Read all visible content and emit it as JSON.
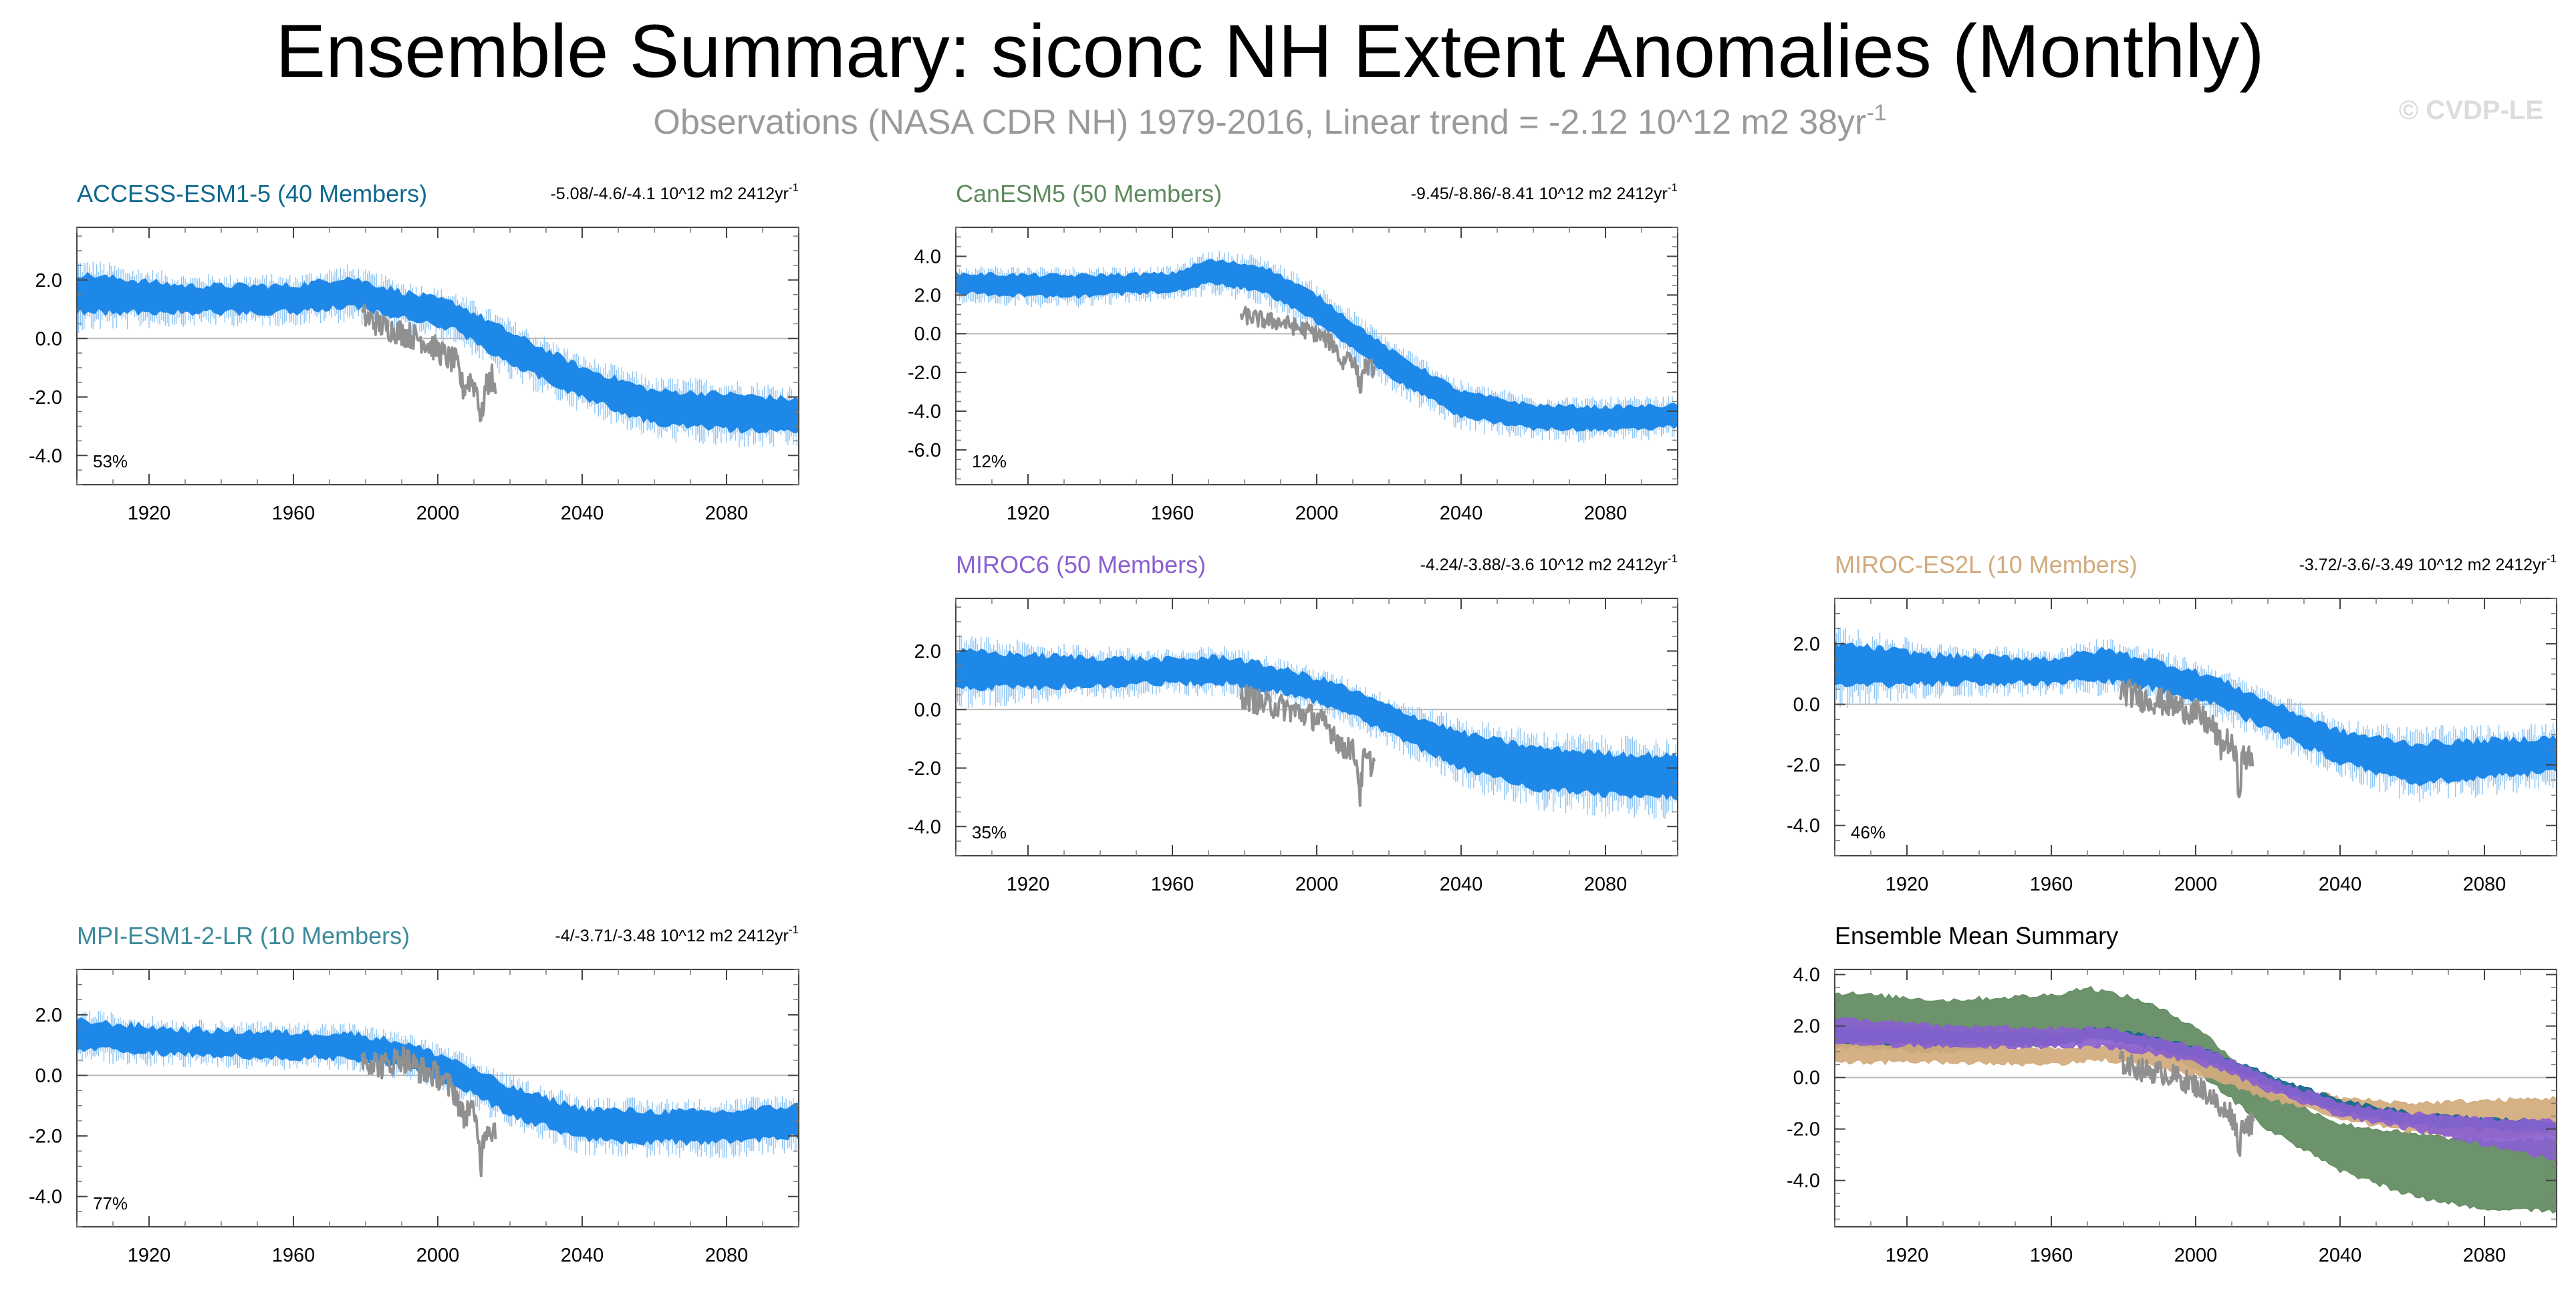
{
  "figure": {
    "title": "Ensemble Summary: siconc NH Extent Anomalies (Monthly)",
    "subtitle": "Observations (NASA CDR NH) 1979-2016, Linear trend = -2.12 10^12 m2 38yr",
    "subtitle_exp": "-1",
    "credit": "© CVDP-LE"
  },
  "colors": {
    "band": "#1e88e8",
    "band_spike": "#8cc4f4",
    "observations": "#909090",
    "ACCESS-ESM1-5": "#10688e",
    "CanESM5": "#5f8a5f",
    "MIROC6": "#8a5fd0",
    "MIROC-ES2L": "#d2aa7c",
    "MPI-ESM1-2-LR": "#3c8a9a",
    "summary_title": "#000000"
  },
  "chart_data": [
    {
      "type": "area",
      "model": "ACCESS-ESM1-5",
      "title": "ACCESS-ESM1-5 (40 Members)",
      "trend_text": "-5.08/-4.6/-4.1 10^12 m2 2412yr",
      "trend_exp": "-1",
      "percent_label": "53%",
      "ylim": [
        -5.0,
        3.8
      ],
      "yticks": [
        2.0,
        0.0,
        -2.0,
        -4.0
      ],
      "ytick_labels": [
        "2.0",
        "0.0",
        "-2.0",
        "-4.0"
      ],
      "xlim": [
        1900,
        2100
      ],
      "xticks": [
        1920,
        1960,
        2000,
        2040,
        2080
      ],
      "xtick_labels": [
        "1920",
        "1960",
        "2000",
        "2040",
        "2080"
      ],
      "series": [
        {
          "name": "Ensemble range (upper)",
          "x": [
            1900,
            1930,
            1960,
            1975,
            1990,
            2005,
            2020,
            2040,
            2060,
            2080,
            2100
          ],
          "values": [
            2.2,
            1.8,
            1.8,
            2.1,
            1.6,
            1.2,
            0.2,
            -1.0,
            -1.8,
            -1.9,
            -2.1
          ]
        },
        {
          "name": "Ensemble range (lower)",
          "x": [
            1900,
            1930,
            1960,
            1975,
            1990,
            2005,
            2020,
            2040,
            2060,
            2080,
            2100
          ],
          "values": [
            0.9,
            0.9,
            0.9,
            1.1,
            0.7,
            0.3,
            -0.9,
            -2.0,
            -2.9,
            -3.1,
            -3.2
          ]
        },
        {
          "name": "Observations",
          "x": [
            1979,
            1985,
            1990,
            1995,
            2000,
            2003,
            2005,
            2007,
            2009,
            2011,
            2012,
            2013,
            2015,
            2016
          ],
          "values": [
            0.8,
            0.4,
            0.2,
            0.0,
            -0.4,
            -0.7,
            -0.8,
            -1.7,
            -1.4,
            -1.8,
            -2.9,
            -1.8,
            -1.3,
            -2.1
          ]
        }
      ]
    },
    {
      "type": "area",
      "model": "CanESM5",
      "title": "CanESM5 (50 Members)",
      "trend_text": "-9.45/-8.86/-8.41 10^12 m2 2412yr",
      "trend_exp": "-1",
      "percent_label": "12%",
      "ylim": [
        -7.8,
        5.5
      ],
      "yticks": [
        4.0,
        2.0,
        0.0,
        -2.0,
        -4.0,
        -6.0
      ],
      "ytick_labels": [
        "4.0",
        "2.0",
        "0.0",
        "-2.0",
        "-4.0",
        "-6.0"
      ],
      "xlim": [
        1900,
        2100
      ],
      "xticks": [
        1920,
        1960,
        2000,
        2040,
        2080
      ],
      "xtick_labels": [
        "1920",
        "1960",
        "2000",
        "2040",
        "2080"
      ],
      "series": [
        {
          "name": "Ensemble range (upper)",
          "x": [
            1900,
            1930,
            1960,
            1970,
            1985,
            2000,
            2020,
            2040,
            2060,
            2080,
            2100
          ],
          "values": [
            3.1,
            3.0,
            3.1,
            3.8,
            3.5,
            2.0,
            -0.8,
            -3.0,
            -3.7,
            -3.8,
            -3.7
          ]
        },
        {
          "name": "Ensemble range (lower)",
          "x": [
            1900,
            1930,
            1960,
            1970,
            1985,
            2000,
            2020,
            2040,
            2060,
            2080,
            2100
          ],
          "values": [
            2.1,
            1.9,
            2.2,
            2.6,
            2.2,
            0.6,
            -2.2,
            -4.3,
            -4.9,
            -5.0,
            -4.8
          ]
        },
        {
          "name": "Observations",
          "x": [
            1979,
            1985,
            1990,
            1995,
            2000,
            2005,
            2007,
            2009,
            2011,
            2012,
            2013,
            2016
          ],
          "values": [
            1.0,
            0.7,
            0.6,
            0.3,
            0.0,
            -0.6,
            -1.6,
            -1.0,
            -1.8,
            -2.9,
            -1.7,
            -1.8
          ]
        }
      ]
    },
    {
      "type": "area",
      "model": "MIROC6",
      "title": "MIROC6 (50 Members)",
      "trend_text": "-4.24/-3.88/-3.6 10^12 m2 2412yr",
      "trend_exp": "-1",
      "percent_label": "35%",
      "ylim": [
        -5.0,
        3.8
      ],
      "yticks": [
        2.0,
        0.0,
        -2.0,
        -4.0
      ],
      "ytick_labels": [
        "2.0",
        "0.0",
        "-2.0",
        "-4.0"
      ],
      "xlim": [
        1900,
        2100
      ],
      "xticks": [
        1920,
        1960,
        2000,
        2040,
        2080
      ],
      "xtick_labels": [
        "1920",
        "1960",
        "2000",
        "2040",
        "2080"
      ],
      "series": [
        {
          "name": "Ensemble range (upper)",
          "x": [
            1900,
            1930,
            1960,
            1975,
            1990,
            2005,
            2020,
            2040,
            2060,
            2080,
            2100
          ],
          "values": [
            2.0,
            1.8,
            1.7,
            1.8,
            1.4,
            0.9,
            0.1,
            -0.8,
            -1.3,
            -1.5,
            -1.6
          ]
        },
        {
          "name": "Ensemble range (lower)",
          "x": [
            1900,
            1930,
            1960,
            1975,
            1990,
            2005,
            2020,
            2040,
            2060,
            2080,
            2100
          ],
          "values": [
            0.7,
            0.8,
            0.9,
            0.9,
            0.6,
            0.1,
            -0.8,
            -2.0,
            -2.7,
            -2.9,
            -3.0
          ]
        },
        {
          "name": "Observations",
          "x": [
            1979,
            1985,
            1990,
            1995,
            2000,
            2005,
            2007,
            2009,
            2011,
            2012,
            2013,
            2016
          ],
          "values": [
            0.5,
            0.2,
            0.1,
            -0.1,
            -0.3,
            -0.8,
            -1.4,
            -1.2,
            -1.7,
            -2.9,
            -1.7,
            -1.9
          ]
        }
      ]
    },
    {
      "type": "area",
      "model": "MIROC-ES2L",
      "title": "MIROC-ES2L (10 Members)",
      "trend_text": "-3.72/-3.6/-3.49 10^12 m2 2412yr",
      "trend_exp": "-1",
      "percent_label": "46%",
      "ylim": [
        -5.0,
        3.5
      ],
      "yticks": [
        2.0,
        0.0,
        -2.0,
        -4.0
      ],
      "ytick_labels": [
        "2.0",
        "0.0",
        "-2.0",
        "-4.0"
      ],
      "xlim": [
        1900,
        2100
      ],
      "xticks": [
        1920,
        1960,
        2000,
        2040,
        2080
      ],
      "xtick_labels": [
        "1920",
        "1960",
        "2000",
        "2040",
        "2080"
      ],
      "series": [
        {
          "name": "Ensemble range (upper)",
          "x": [
            1900,
            1930,
            1960,
            1975,
            1990,
            2005,
            2020,
            2040,
            2060,
            2080,
            2100
          ],
          "values": [
            2.0,
            1.6,
            1.5,
            1.8,
            1.4,
            0.9,
            0.1,
            -0.9,
            -1.3,
            -1.2,
            -1.1
          ]
        },
        {
          "name": "Ensemble range (lower)",
          "x": [
            1900,
            1930,
            1960,
            1975,
            1990,
            2005,
            2020,
            2040,
            2060,
            2080,
            2100
          ],
          "values": [
            0.6,
            0.7,
            0.7,
            0.8,
            0.5,
            0.0,
            -0.8,
            -1.9,
            -2.6,
            -2.4,
            -2.2
          ]
        },
        {
          "name": "Observations",
          "x": [
            1979,
            1985,
            1990,
            1995,
            2000,
            2005,
            2007,
            2009,
            2011,
            2012,
            2013,
            2016
          ],
          "values": [
            0.5,
            0.2,
            0.1,
            -0.1,
            -0.3,
            -0.8,
            -1.4,
            -1.2,
            -1.7,
            -2.9,
            -1.7,
            -1.9
          ]
        }
      ]
    },
    {
      "type": "area",
      "model": "MPI-ESM1-2-LR",
      "title": "MPI-ESM1-2-LR (10 Members)",
      "trend_text": "-4/-3.71/-3.48 10^12 m2 2412yr",
      "trend_exp": "-1",
      "percent_label": "77%",
      "ylim": [
        -5.0,
        3.5
      ],
      "yticks": [
        2.0,
        0.0,
        -2.0,
        -4.0
      ],
      "ytick_labels": [
        "2.0",
        "0.0",
        "-2.0",
        "-4.0"
      ],
      "xlim": [
        1900,
        2100
      ],
      "xticks": [
        1920,
        1960,
        2000,
        2040,
        2080
      ],
      "xtick_labels": [
        "1920",
        "1960",
        "2000",
        "2040",
        "2080"
      ],
      "series": [
        {
          "name": "Ensemble range (upper)",
          "x": [
            1900,
            1930,
            1960,
            1975,
            1990,
            2005,
            2020,
            2040,
            2060,
            2080,
            2100
          ],
          "values": [
            1.8,
            1.5,
            1.4,
            1.4,
            1.1,
            0.5,
            -0.4,
            -1.1,
            -1.2,
            -1.2,
            -1.0
          ]
        },
        {
          "name": "Ensemble range (lower)",
          "x": [
            1900,
            1930,
            1960,
            1975,
            1990,
            2005,
            2020,
            2040,
            2060,
            2080,
            2100
          ],
          "values": [
            0.9,
            0.7,
            0.6,
            0.6,
            0.3,
            -0.3,
            -1.3,
            -2.1,
            -2.2,
            -2.2,
            -2.0
          ]
        },
        {
          "name": "Observations",
          "x": [
            1979,
            1985,
            1990,
            1995,
            2000,
            2005,
            2007,
            2009,
            2011,
            2012,
            2013,
            2016
          ],
          "values": [
            0.6,
            0.3,
            0.6,
            0.2,
            0.0,
            -0.6,
            -1.4,
            -1.0,
            -1.8,
            -2.9,
            -1.7,
            -1.8
          ]
        }
      ]
    },
    {
      "type": "area",
      "model": "Ensemble Mean Summary",
      "title": "Ensemble Mean Summary",
      "trend_text": "",
      "trend_exp": "",
      "percent_label": "",
      "ylim": [
        -5.8,
        4.2
      ],
      "yticks": [
        4.0,
        2.0,
        0.0,
        -2.0,
        -4.0
      ],
      "ytick_labels": [
        "4.0",
        "2.0",
        "0.0",
        "-2.0",
        "-4.0"
      ],
      "xlim": [
        1900,
        2100
      ],
      "xticks": [
        1920,
        1960,
        2000,
        2040,
        2080
      ],
      "xtick_labels": [
        "1920",
        "1960",
        "2000",
        "2040",
        "2080"
      ],
      "series": [
        {
          "name": "CanESM5 ensemble mean range",
          "color_key": "CanESM5",
          "x": [
            1900,
            1930,
            1960,
            1970,
            1985,
            2000,
            2020,
            2040,
            2060,
            2080,
            2100
          ],
          "upper": [
            3.3,
            3.0,
            3.2,
            3.5,
            3.0,
            2.0,
            -0.5,
            -1.8,
            -2.2,
            -2.5,
            -2.4
          ],
          "lower": [
            1.2,
            1.0,
            1.3,
            1.6,
            1.3,
            0.3,
            -2.0,
            -3.6,
            -4.6,
            -5.1,
            -5.2
          ]
        },
        {
          "name": "MIROC-ES2L ensemble mean range",
          "color_key": "MIROC-ES2L",
          "x": [
            1900,
            1930,
            1960,
            1975,
            1990,
            2005,
            2020,
            2040,
            2060,
            2080,
            2100
          ],
          "upper": [
            1.6,
            1.3,
            1.1,
            1.3,
            1.0,
            0.6,
            -0.1,
            -0.8,
            -1.0,
            -0.9,
            -0.8
          ],
          "lower": [
            0.6,
            0.6,
            0.5,
            0.7,
            0.4,
            -0.1,
            -0.8,
            -1.6,
            -2.1,
            -2.4,
            -2.2
          ]
        },
        {
          "name": "ACCESS-ESM1-5 ensemble mean range",
          "color_key": "ACCESS-ESM1-5",
          "x": [
            1900,
            1930,
            1960,
            1975,
            1990,
            2005,
            2020,
            2040,
            2060,
            2080,
            2100
          ],
          "upper": [
            2.0,
            1.8,
            1.7,
            1.9,
            1.5,
            1.0,
            0.1,
            -0.9,
            -1.4,
            -1.6,
            -1.7
          ],
          "lower": [
            1.4,
            1.3,
            1.3,
            1.5,
            1.1,
            0.6,
            -0.3,
            -1.3,
            -1.8,
            -2.0,
            -2.1
          ]
        },
        {
          "name": "MIROC6 ensemble mean range",
          "color_key": "MIROC6",
          "x": [
            1900,
            1930,
            1960,
            1975,
            1990,
            2005,
            2020,
            2040,
            2060,
            2080,
            2100
          ],
          "upper": [
            2.3,
            2.0,
            1.9,
            1.9,
            1.5,
            1.0,
            0.0,
            -1.0,
            -1.4,
            -1.6,
            -1.7
          ],
          "lower": [
            1.3,
            1.2,
            1.2,
            1.2,
            0.9,
            0.4,
            -0.5,
            -1.5,
            -2.0,
            -2.6,
            -3.2
          ]
        },
        {
          "name": "Observations",
          "x": [
            1979,
            1985,
            1990,
            1995,
            2000,
            2005,
            2007,
            2009,
            2011,
            2012,
            2013,
            2016
          ],
          "values": [
            0.6,
            0.3,
            0.2,
            0.0,
            -0.3,
            -0.8,
            -1.4,
            -1.2,
            -1.8,
            -2.9,
            -1.7,
            -1.9
          ]
        }
      ]
    }
  ]
}
